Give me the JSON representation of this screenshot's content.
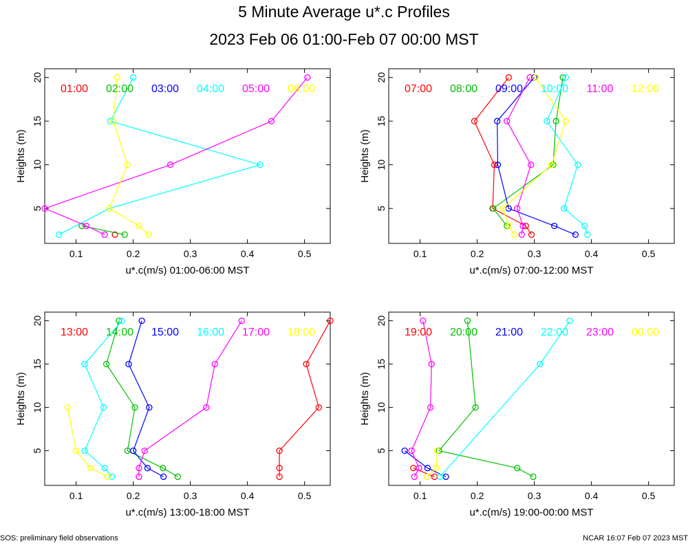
{
  "title": "5 Minute Average u*.c Profiles",
  "subtitle": "2023 Feb 06 01:00-Feb 07 00:00 MST",
  "footer_left": "SOS: preliminary field observations",
  "footer_right": "NCAR 16:07 Feb 07 2023 MST",
  "colors": {
    "red": "#ff0000",
    "green": "#00c000",
    "blue": "#0000ff",
    "cyan": "#00ffff",
    "magenta": "#ff00ff",
    "yellow": "#ffff00"
  },
  "chart_data": [
    {
      "type": "line",
      "xlabel": "u*.c(m/s) 01:00-06:00 MST",
      "ylabel": "Heights (m)",
      "xlim": [
        0.045,
        0.545
      ],
      "ylim": [
        1,
        21
      ],
      "xticks": [
        "0.1",
        "0.2",
        "0.3",
        "0.4",
        "0.5"
      ],
      "yticks": [
        "5",
        "10",
        "15",
        "20"
      ],
      "series": [
        {
          "name": "01:00",
          "color": "#ff0000",
          "points": [
            [
              0.168,
              2
            ]
          ]
        },
        {
          "name": "02:00",
          "color": "#00c000",
          "points": [
            [
              0.185,
              2
            ],
            [
              0.11,
              3
            ]
          ]
        },
        {
          "name": "03:00",
          "color": "#0000ff",
          "points": []
        },
        {
          "name": "04:00",
          "color": "#00ffff",
          "points": [
            [
              0.07,
              2
            ],
            [
              0.158,
              5
            ],
            [
              0.422,
              10
            ],
            [
              0.16,
              15
            ],
            [
              0.2,
              20
            ]
          ]
        },
        {
          "name": "05:00",
          "color": "#ff00ff",
          "points": [
            [
              0.15,
              2
            ],
            [
              0.118,
              3
            ],
            [
              0.045,
              5
            ],
            [
              0.265,
              10
            ],
            [
              0.442,
              15
            ],
            [
              0.505,
              20
            ]
          ]
        },
        {
          "name": "06:00",
          "color": "#ffff00",
          "points": [
            [
              0.227,
              2
            ],
            [
              0.21,
              3
            ],
            [
              0.158,
              5
            ],
            [
              0.19,
              10
            ],
            [
              0.165,
              15
            ],
            [
              0.172,
              20
            ]
          ]
        }
      ]
    },
    {
      "type": "line",
      "xlabel": "u*.c(m/s) 07:00-12:00 MST",
      "ylabel": "Heights (m)",
      "xlim": [
        0.045,
        0.545
      ],
      "ylim": [
        1,
        21
      ],
      "xticks": [
        "0.1",
        "0.2",
        "0.3",
        "0.4",
        "0.5"
      ],
      "yticks": [
        "5",
        "10",
        "15",
        "20"
      ],
      "series": [
        {
          "name": "07:00",
          "color": "#ff0000",
          "points": [
            [
              0.295,
              2
            ],
            [
              0.285,
              3
            ],
            [
              0.227,
              5
            ],
            [
              0.23,
              10
            ],
            [
              0.195,
              15
            ],
            [
              0.255,
              20
            ]
          ]
        },
        {
          "name": "08:00",
          "color": "#00c000",
          "points": [
            [
              0.252,
              3
            ],
            [
              0.228,
              5
            ],
            [
              0.333,
              10
            ],
            [
              0.338,
              15
            ],
            [
              0.35,
              20
            ]
          ]
        },
        {
          "name": "09:00",
          "color": "#0000ff",
          "points": [
            [
              0.372,
              2
            ],
            [
              0.335,
              3
            ],
            [
              0.255,
              5
            ],
            [
              0.236,
              10
            ],
            [
              0.235,
              15
            ],
            [
              0.3,
              20
            ]
          ]
        },
        {
          "name": "10:00",
          "color": "#00ffff",
          "points": [
            [
              0.393,
              2
            ],
            [
              0.388,
              3
            ],
            [
              0.352,
              5
            ],
            [
              0.376,
              10
            ],
            [
              0.322,
              15
            ],
            [
              0.355,
              20
            ]
          ]
        },
        {
          "name": "11:00",
          "color": "#ff00ff",
          "points": [
            [
              0.278,
              2
            ],
            [
              0.28,
              3
            ],
            [
              0.27,
              5
            ],
            [
              0.294,
              10
            ],
            [
              0.252,
              15
            ],
            [
              0.292,
              20
            ]
          ]
        },
        {
          "name": "12:00",
          "color": "#ffff00",
          "points": [
            [
              0.265,
              2
            ],
            [
              0.255,
              3
            ],
            [
              0.245,
              5
            ],
            [
              0.33,
              10
            ],
            [
              0.355,
              15
            ],
            [
              0.302,
              20
            ]
          ]
        }
      ]
    },
    {
      "type": "line",
      "xlabel": "u*.c(m/s) 13:00-18:00 MST",
      "ylabel": "Heights (m)",
      "xlim": [
        0.045,
        0.545
      ],
      "ylim": [
        1,
        21
      ],
      "xticks": [
        "0.1",
        "0.2",
        "0.3",
        "0.4",
        "0.5"
      ],
      "yticks": [
        "5",
        "10",
        "15",
        "20"
      ],
      "series": [
        {
          "name": "13:00",
          "color": "#ff0000",
          "points": [
            [
              0.456,
              2
            ],
            [
              0.456,
              3
            ],
            [
              0.456,
              5
            ],
            [
              0.525,
              10
            ],
            [
              0.503,
              15
            ],
            [
              0.545,
              20
            ]
          ]
        },
        {
          "name": "14:00",
          "color": "#00c000",
          "points": [
            [
              0.278,
              2
            ],
            [
              0.252,
              3
            ],
            [
              0.19,
              5
            ],
            [
              0.203,
              10
            ],
            [
              0.153,
              15
            ],
            [
              0.175,
              20
            ]
          ]
        },
        {
          "name": "15:00",
          "color": "#0000ff",
          "points": [
            [
              0.253,
              2
            ],
            [
              0.225,
              3
            ],
            [
              0.2,
              5
            ],
            [
              0.228,
              10
            ],
            [
              0.192,
              15
            ],
            [
              0.215,
              20
            ]
          ]
        },
        {
          "name": "16:00",
          "color": "#00ffff",
          "points": [
            [
              0.163,
              2
            ],
            [
              0.15,
              3
            ],
            [
              0.115,
              5
            ],
            [
              0.148,
              10
            ],
            [
              0.115,
              15
            ],
            [
              0.18,
              20
            ]
          ]
        },
        {
          "name": "17:00",
          "color": "#ff00ff",
          "points": [
            [
              0.21,
              2
            ],
            [
              0.21,
              3
            ],
            [
              0.22,
              5
            ],
            [
              0.328,
              10
            ],
            [
              0.343,
              15
            ],
            [
              0.39,
              20
            ]
          ]
        },
        {
          "name": "18:00",
          "color": "#ffff00",
          "points": [
            [
              0.155,
              2
            ],
            [
              0.125,
              3
            ],
            [
              0.1,
              5
            ],
            [
              0.085,
              10
            ]
          ]
        }
      ]
    },
    {
      "type": "line",
      "xlabel": "u*.c(m/s) 19:00-00:00 MST",
      "ylabel": "Heights (m)",
      "xlim": [
        0.045,
        0.545
      ],
      "ylim": [
        1,
        21
      ],
      "xticks": [
        "0.1",
        "0.2",
        "0.3",
        "0.4",
        "0.5"
      ],
      "yticks": [
        "5",
        "10",
        "15",
        "20"
      ],
      "series": [
        {
          "name": "19:00",
          "color": "#ff0000",
          "points": [
            [
              0.125,
              2
            ],
            [
              0.088,
              3
            ]
          ]
        },
        {
          "name": "20:00",
          "color": "#00c000",
          "points": [
            [
              0.298,
              2
            ],
            [
              0.27,
              3
            ],
            [
              0.133,
              5
            ],
            [
              0.197,
              10
            ],
            [
              0.183,
              20
            ]
          ]
        },
        {
          "name": "21:00",
          "color": "#0000ff",
          "points": [
            [
              0.145,
              2
            ],
            [
              0.113,
              3
            ],
            [
              0.073,
              5
            ]
          ]
        },
        {
          "name": "22:00",
          "color": "#00ffff",
          "points": [
            [
              0.135,
              2
            ],
            [
              0.31,
              15
            ],
            [
              0.362,
              20
            ]
          ]
        },
        {
          "name": "23:00",
          "color": "#ff00ff",
          "points": [
            [
              0.09,
              2
            ],
            [
              0.098,
              3
            ],
            [
              0.085,
              5
            ],
            [
              0.118,
              10
            ],
            [
              0.12,
              15
            ],
            [
              0.105,
              20
            ]
          ]
        },
        {
          "name": "00:00",
          "color": "#ffff00",
          "points": [
            [
              0.112,
              2
            ],
            [
              0.128,
              3
            ],
            [
              0.13,
              5
            ]
          ]
        }
      ]
    }
  ]
}
